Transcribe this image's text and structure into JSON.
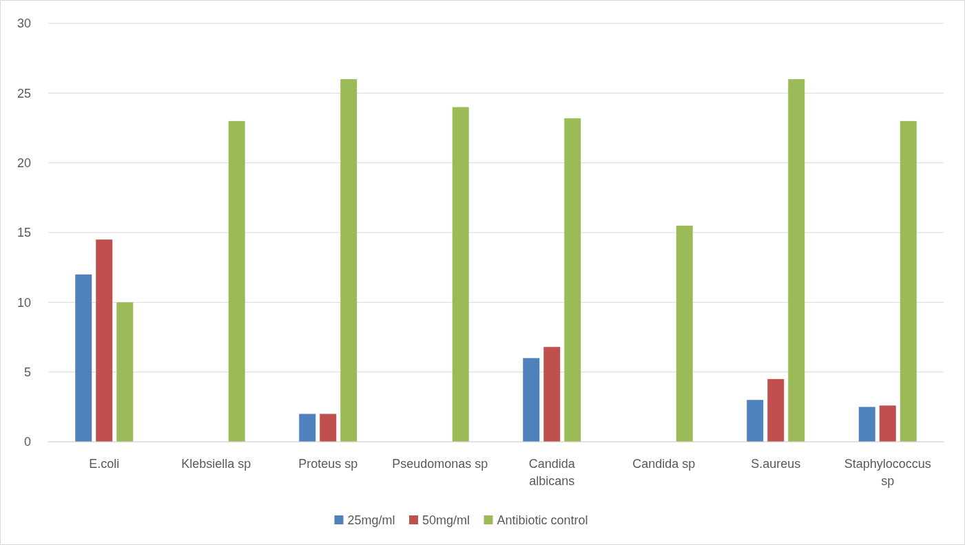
{
  "chart_data": {
    "type": "bar",
    "categories": [
      "E.coli",
      "Klebsiella sp",
      "Proteus sp",
      "Pseudomonas sp",
      "Candida albicans",
      "Candida sp",
      "S.aureus",
      "Staphylococcus sp"
    ],
    "series": [
      {
        "name": "25mg/ml",
        "color": "#4f81bd",
        "values": [
          12,
          0,
          2,
          0,
          6,
          0,
          3,
          2.5
        ]
      },
      {
        "name": "50mg/ml",
        "color": "#c0504d",
        "values": [
          14.5,
          0,
          2,
          0,
          6.8,
          0,
          4.5,
          2.6
        ]
      },
      {
        "name": "Antibiotic control",
        "color": "#9bbb59",
        "values": [
          10,
          23,
          26,
          24,
          23.2,
          15.5,
          26,
          23
        ]
      }
    ],
    "ylim": [
      0,
      30
    ],
    "yticks": [
      0,
      5,
      10,
      15,
      20,
      25,
      30
    ],
    "grid": "y",
    "legend": "bottom"
  }
}
